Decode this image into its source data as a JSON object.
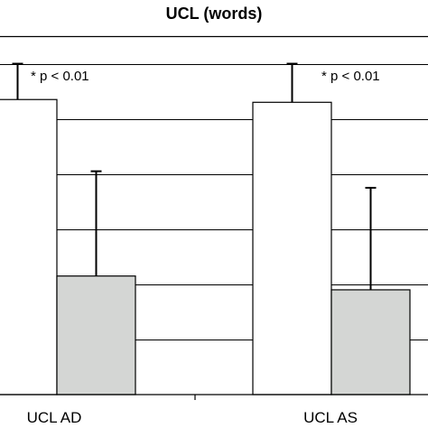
{
  "chart_data": {
    "type": "bar",
    "title": "UCL (words)",
    "xlabel": "",
    "ylabel": "",
    "categories": [
      "UCL AD",
      "UCL AS"
    ],
    "series": [
      {
        "values": [
          107,
          106
        ],
        "errors": [
          13,
          14
        ],
        "color": "#ffffff"
      },
      {
        "values": [
          43,
          38
        ],
        "errors": [
          38,
          37
        ],
        "color": "#d4d6d4"
      }
    ],
    "ylim": [
      0,
      130
    ],
    "grid": true,
    "annotations": [
      "* p < 0.01",
      "* p < 0.01"
    ]
  }
}
